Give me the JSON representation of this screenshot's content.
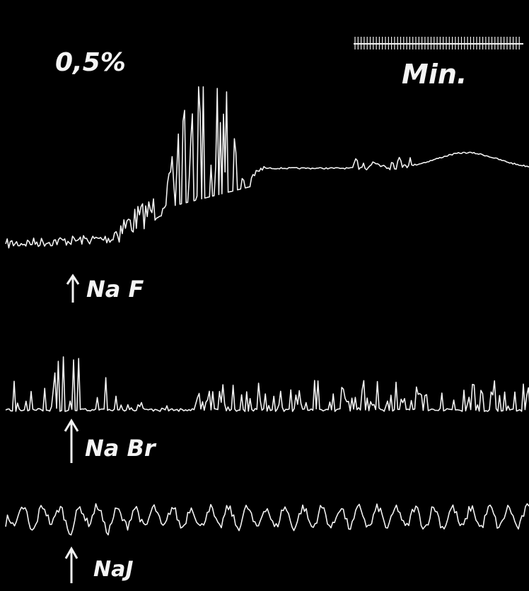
{
  "header": {
    "concentration": "0,5%",
    "time_scale": "Min."
  },
  "traces": [
    {
      "label": "Na F"
    },
    {
      "label": "Na Br"
    },
    {
      "label": "NaJ"
    }
  ]
}
